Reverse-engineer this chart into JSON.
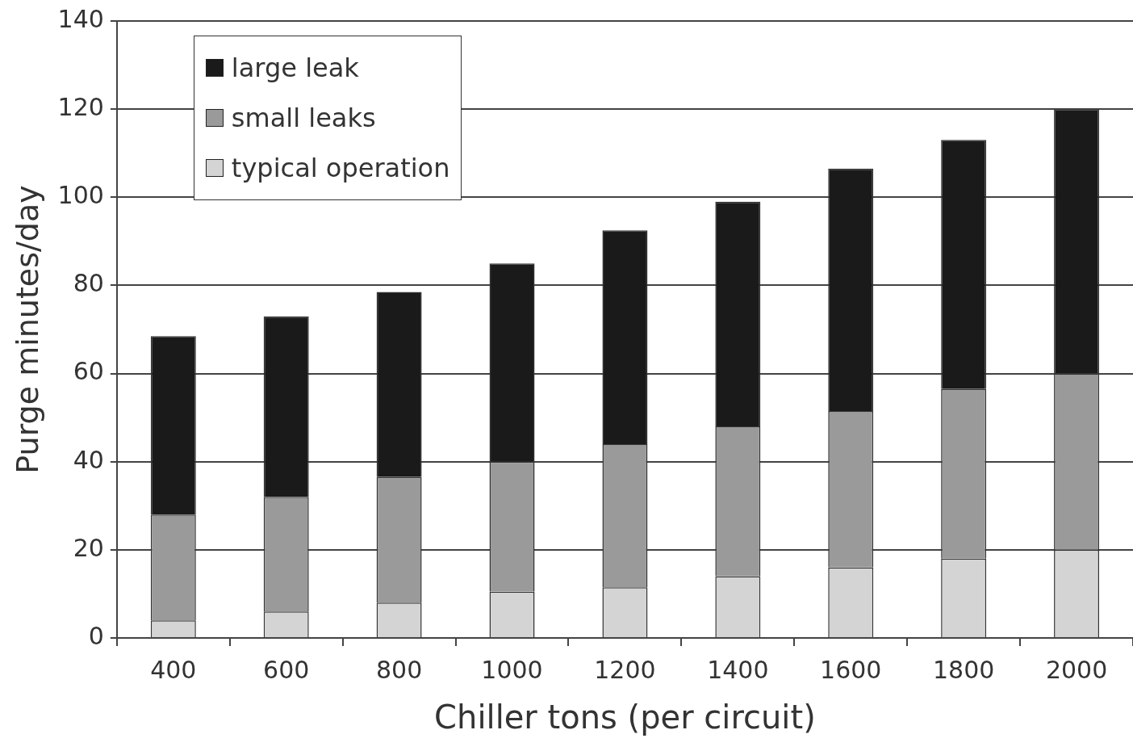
{
  "chart_data": {
    "type": "bar",
    "stacked": true,
    "xlabel": "Chiller tons (per circuit)",
    "ylabel": "Purge minutes/day",
    "categories": [
      "400",
      "600",
      "800",
      "1000",
      "1200",
      "1400",
      "1600",
      "1800",
      "2000"
    ],
    "series": [
      {
        "name": "typical operation",
        "color": "#d4d4d4",
        "values": [
          4,
          6,
          8,
          10.5,
          11.5,
          14,
          16,
          18,
          20
        ]
      },
      {
        "name": "small leaks",
        "color": "#9a9a9a",
        "values": [
          24,
          26,
          28.5,
          29.5,
          32.5,
          34,
          35.5,
          38.5,
          40
        ]
      },
      {
        "name": "large leak",
        "color": "#1a1a1a",
        "values": [
          40.5,
          41,
          42,
          45,
          48.5,
          51,
          55,
          56.5,
          60
        ]
      }
    ],
    "ylim": [
      0,
      140
    ],
    "yticks": [
      0,
      20,
      40,
      60,
      80,
      100,
      120,
      140
    ],
    "grid": "y",
    "legend": "top left"
  }
}
